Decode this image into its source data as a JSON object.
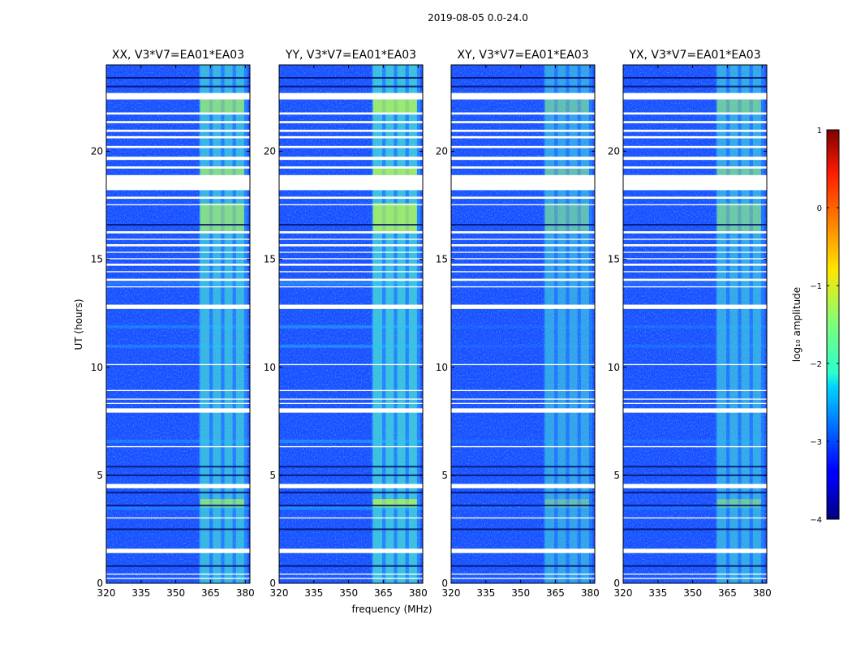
{
  "chart_data": {
    "type": "heatmap",
    "title": "2019-08-05 0.0-24.0",
    "xlabel": "frequency (MHz)",
    "ylabel": "UT (hours)",
    "xlim": [
      320,
      382
    ],
    "ylim": [
      0,
      24
    ],
    "x_ticks": [
      320,
      335,
      350,
      365,
      380
    ],
    "y_ticks": [
      0,
      5,
      10,
      15,
      20
    ],
    "panels": [
      {
        "title": "XX, V3*V7=EA01*EA03",
        "level": 0.3
      },
      {
        "title": "YY, V3*V7=EA01*EA03",
        "level": 0.42
      },
      {
        "title": "XY, V3*V7=EA01*EA03",
        "level": 0.12
      },
      {
        "title": "YX, V3*V7=EA01*EA03",
        "level": 0.18
      }
    ],
    "rfi_band_mhz": [
      360,
      381
    ],
    "rfi_channels_mhz": [
      [
        360.5,
        364.5
      ],
      [
        366,
        369.5
      ],
      [
        371,
        374.5
      ],
      [
        376,
        379.5
      ]
    ],
    "blank_intervals_ut": [
      [
        22.4,
        22.7
      ],
      [
        21.7,
        21.8
      ],
      [
        21.3,
        21.4
      ],
      [
        20.9,
        21.0
      ],
      [
        20.6,
        20.7
      ],
      [
        20.15,
        20.25
      ],
      [
        19.6,
        19.75
      ],
      [
        19.2,
        19.3
      ],
      [
        18.2,
        18.9
      ],
      [
        17.8,
        17.9
      ],
      [
        17.5,
        17.55
      ],
      [
        16.2,
        16.3
      ],
      [
        15.9,
        15.95
      ],
      [
        15.6,
        15.7
      ],
      [
        15.3,
        15.35
      ],
      [
        15.0,
        15.05
      ],
      [
        14.7,
        14.8
      ],
      [
        14.4,
        14.45
      ],
      [
        14.0,
        14.1
      ],
      [
        13.7,
        13.75
      ],
      [
        12.7,
        12.9
      ],
      [
        10.1,
        10.15
      ],
      [
        8.9,
        8.95
      ],
      [
        8.5,
        8.55
      ],
      [
        8.3,
        8.35
      ],
      [
        7.9,
        8.1
      ],
      [
        6.3,
        6.35
      ],
      [
        4.4,
        4.6
      ],
      [
        3.0,
        3.05
      ],
      [
        1.4,
        1.6
      ],
      [
        0.4,
        0.45
      ],
      [
        0.2,
        0.25
      ]
    ],
    "dark_lines_ut": [
      23.4,
      23.0,
      16.6,
      5.4,
      5.0,
      4.2,
      3.6,
      2.5,
      0.8
    ],
    "colorbar": {
      "label": "log₁₀ amplitude",
      "range": [
        -4,
        1
      ],
      "ticks": [
        "1",
        "0",
        "−1",
        "−2",
        "−3",
        "−4"
      ],
      "tick_values": [
        1,
        0,
        -1,
        -2,
        -3,
        -4
      ],
      "colormap": "jet"
    }
  }
}
